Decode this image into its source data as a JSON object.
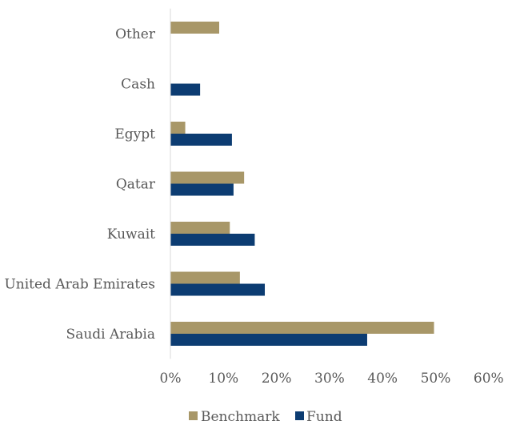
{
  "chart_data": {
    "type": "bar",
    "orientation": "horizontal",
    "categories": [
      "Saudi Arabia",
      "United Arab Emirates",
      "Kuwait",
      "Qatar",
      "Egypt",
      "Cash",
      "Other"
    ],
    "series": [
      {
        "name": "Benchmark",
        "color": "#a89768",
        "values": [
          49.7,
          13.1,
          11.2,
          13.9,
          2.8,
          0.0,
          9.2
        ]
      },
      {
        "name": "Fund",
        "color": "#0c3c72",
        "values": [
          37.1,
          17.8,
          15.9,
          11.9,
          11.6,
          5.6,
          0.0
        ]
      }
    ],
    "x_ticks": [
      "0%",
      "10%",
      "20%",
      "30%",
      "40%",
      "50%",
      "60%"
    ],
    "xlim": [
      0,
      60
    ],
    "title": "",
    "xlabel": "",
    "ylabel": "",
    "grid": false,
    "legend_position": "bottom"
  }
}
